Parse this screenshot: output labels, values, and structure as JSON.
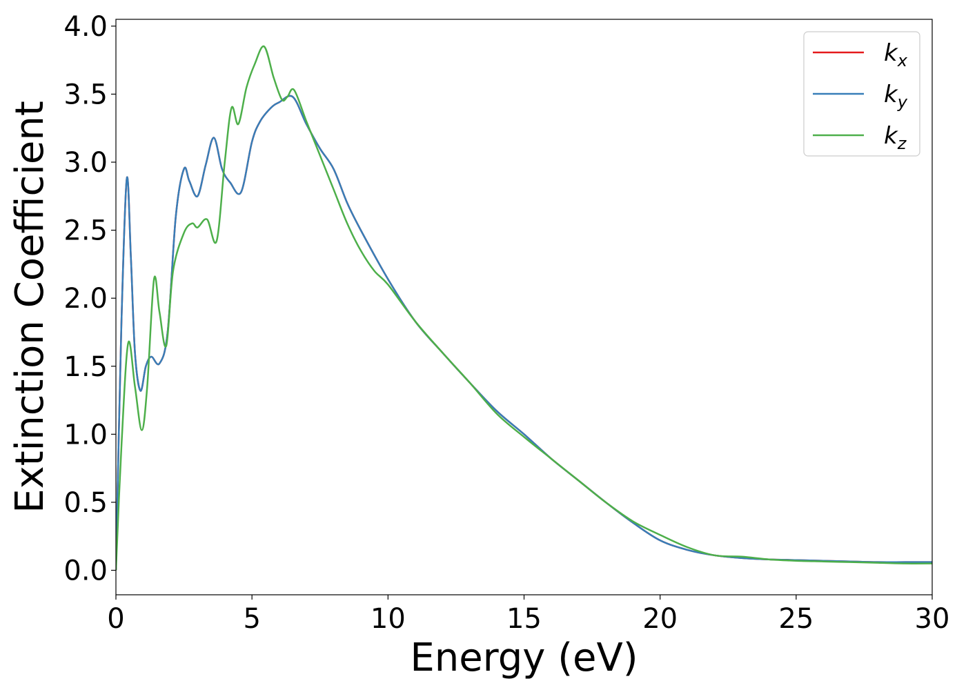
{
  "chart_data": {
    "type": "line",
    "title": "",
    "xlabel": "Energy (eV)",
    "ylabel": "Extinction Coefficient",
    "xlim": [
      0,
      30
    ],
    "ylim": [
      -0.18,
      4.05
    ],
    "xticks": [
      0,
      5,
      10,
      15,
      20,
      25,
      30
    ],
    "xtick_labels": [
      "0",
      "5",
      "10",
      "15",
      "20",
      "25",
      "30"
    ],
    "yticks": [
      0.0,
      0.5,
      1.0,
      1.5,
      2.0,
      2.5,
      3.0,
      3.5,
      4.0
    ],
    "ytick_labels": [
      "0.0",
      "0.5",
      "1.0",
      "1.5",
      "2.0",
      "2.5",
      "3.0",
      "3.5",
      "4.0"
    ],
    "grid": false,
    "legend_position": "top-right",
    "series": [
      {
        "name": "k_x",
        "label_main": "k",
        "label_sub": "x",
        "color": "#e41a1c",
        "x": [
          0,
          0.2,
          0.4,
          0.55,
          0.7,
          0.9,
          1.1,
          1.3,
          1.6,
          1.9,
          2.2,
          2.5,
          2.7,
          3.0,
          3.3,
          3.6,
          3.9,
          4.2,
          4.6,
          5.0,
          5.3,
          5.7,
          6.0,
          6.5,
          7.0,
          7.5,
          8.0,
          8.5,
          9.0,
          10,
          11,
          12,
          13,
          14,
          15,
          16,
          17,
          18,
          19,
          20,
          21,
          22,
          23,
          24,
          25,
          26,
          27,
          28,
          29,
          30
        ],
        "y": [
          0.0,
          1.8,
          2.88,
          2.3,
          1.6,
          1.32,
          1.5,
          1.57,
          1.52,
          1.75,
          2.6,
          2.95,
          2.86,
          2.75,
          2.98,
          3.18,
          2.95,
          2.85,
          2.78,
          3.15,
          3.3,
          3.4,
          3.44,
          3.48,
          3.28,
          3.1,
          2.95,
          2.7,
          2.5,
          2.14,
          1.83,
          1.6,
          1.38,
          1.17,
          1.0,
          0.82,
          0.66,
          0.5,
          0.35,
          0.22,
          0.15,
          0.11,
          0.09,
          0.08,
          0.075,
          0.07,
          0.065,
          0.06,
          0.06,
          0.06
        ]
      },
      {
        "name": "k_y",
        "label_main": "k",
        "label_sub": "y",
        "color": "#377eb8",
        "x": [
          0,
          0.2,
          0.4,
          0.55,
          0.7,
          0.9,
          1.1,
          1.3,
          1.6,
          1.9,
          2.2,
          2.5,
          2.7,
          3.0,
          3.3,
          3.6,
          3.9,
          4.2,
          4.6,
          5.0,
          5.3,
          5.7,
          6.0,
          6.5,
          7.0,
          7.5,
          8.0,
          8.5,
          9.0,
          10,
          11,
          12,
          13,
          14,
          15,
          16,
          17,
          18,
          19,
          20,
          21,
          22,
          23,
          24,
          25,
          26,
          27,
          28,
          29,
          30
        ],
        "y": [
          0.0,
          1.8,
          2.88,
          2.3,
          1.6,
          1.32,
          1.5,
          1.57,
          1.52,
          1.75,
          2.6,
          2.95,
          2.86,
          2.75,
          2.98,
          3.18,
          2.95,
          2.85,
          2.78,
          3.15,
          3.3,
          3.4,
          3.44,
          3.48,
          3.28,
          3.1,
          2.95,
          2.7,
          2.5,
          2.14,
          1.83,
          1.6,
          1.38,
          1.17,
          1.0,
          0.82,
          0.66,
          0.5,
          0.35,
          0.22,
          0.15,
          0.11,
          0.09,
          0.08,
          0.075,
          0.07,
          0.065,
          0.06,
          0.06,
          0.06
        ]
      },
      {
        "name": "k_z",
        "label_main": "k",
        "label_sub": "z",
        "color": "#4daf4a",
        "x": [
          0,
          0.2,
          0.45,
          0.7,
          0.95,
          1.15,
          1.4,
          1.6,
          1.85,
          2.1,
          2.5,
          2.8,
          3.0,
          3.35,
          3.7,
          4.0,
          4.25,
          4.5,
          4.8,
          5.1,
          5.45,
          5.8,
          6.1,
          6.3,
          6.55,
          7.0,
          7.5,
          8.0,
          8.5,
          9.0,
          9.5,
          10,
          11,
          12,
          13,
          14,
          15,
          16,
          17,
          18,
          19,
          20,
          21,
          22,
          23,
          24,
          25,
          26,
          27,
          28,
          29,
          30
        ],
        "y": [
          0.0,
          0.9,
          1.67,
          1.35,
          1.03,
          1.35,
          2.14,
          1.9,
          1.65,
          2.2,
          2.48,
          2.55,
          2.52,
          2.58,
          2.42,
          3.0,
          3.4,
          3.28,
          3.55,
          3.72,
          3.85,
          3.62,
          3.46,
          3.48,
          3.53,
          3.3,
          3.05,
          2.8,
          2.55,
          2.35,
          2.2,
          2.1,
          1.83,
          1.6,
          1.38,
          1.15,
          0.98,
          0.82,
          0.66,
          0.5,
          0.36,
          0.26,
          0.17,
          0.11,
          0.1,
          0.08,
          0.07,
          0.065,
          0.06,
          0.055,
          0.05,
          0.05
        ]
      }
    ]
  }
}
